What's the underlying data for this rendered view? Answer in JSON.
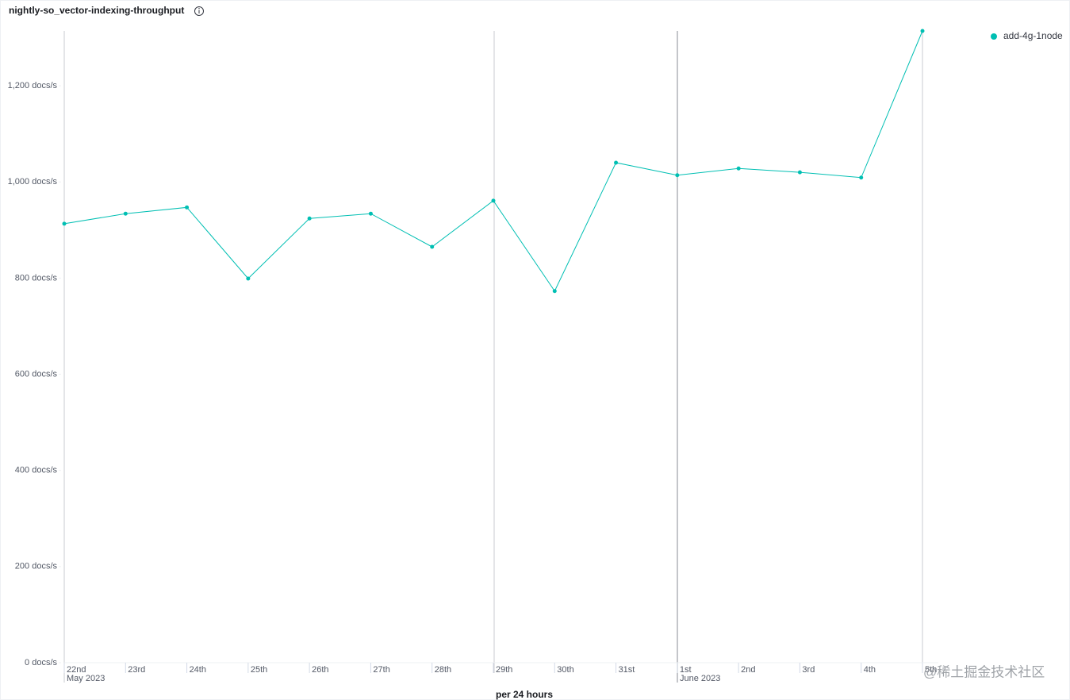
{
  "chart_data": {
    "type": "line",
    "title": "nightly-so_vector-indexing-throughput",
    "x_label": "per 24 hours",
    "categories": [
      "22nd",
      "23rd",
      "24th",
      "25th",
      "26th",
      "27th",
      "28th",
      "29th",
      "30th",
      "31st",
      "1st",
      "2nd",
      "3rd",
      "4th",
      "5th"
    ],
    "month_labels": [
      "May 2023",
      "June 2023"
    ],
    "series": [
      {
        "name": "add-4g-1node",
        "color": "#00bfb3",
        "values": [
          913,
          934,
          947,
          799,
          924,
          934,
          865,
          961,
          773,
          1040,
          1014,
          1028,
          1020,
          1009,
          1314
        ]
      }
    ],
    "ylim": [
      0,
      1314
    ],
    "yticks": [
      {
        "value": 0,
        "label": "0 docs/s"
      },
      {
        "value": 200,
        "label": "200 docs/s"
      },
      {
        "value": 400,
        "label": "400 docs/s"
      },
      {
        "value": 600,
        "label": "600 docs/s"
      },
      {
        "value": 800,
        "label": "800 docs/s"
      },
      {
        "value": 1000,
        "label": "1,000 docs/s"
      },
      {
        "value": 1200,
        "label": "1,200 docs/s"
      }
    ],
    "legend": "top-right",
    "watermark": "@稀土掘金技术社区"
  }
}
